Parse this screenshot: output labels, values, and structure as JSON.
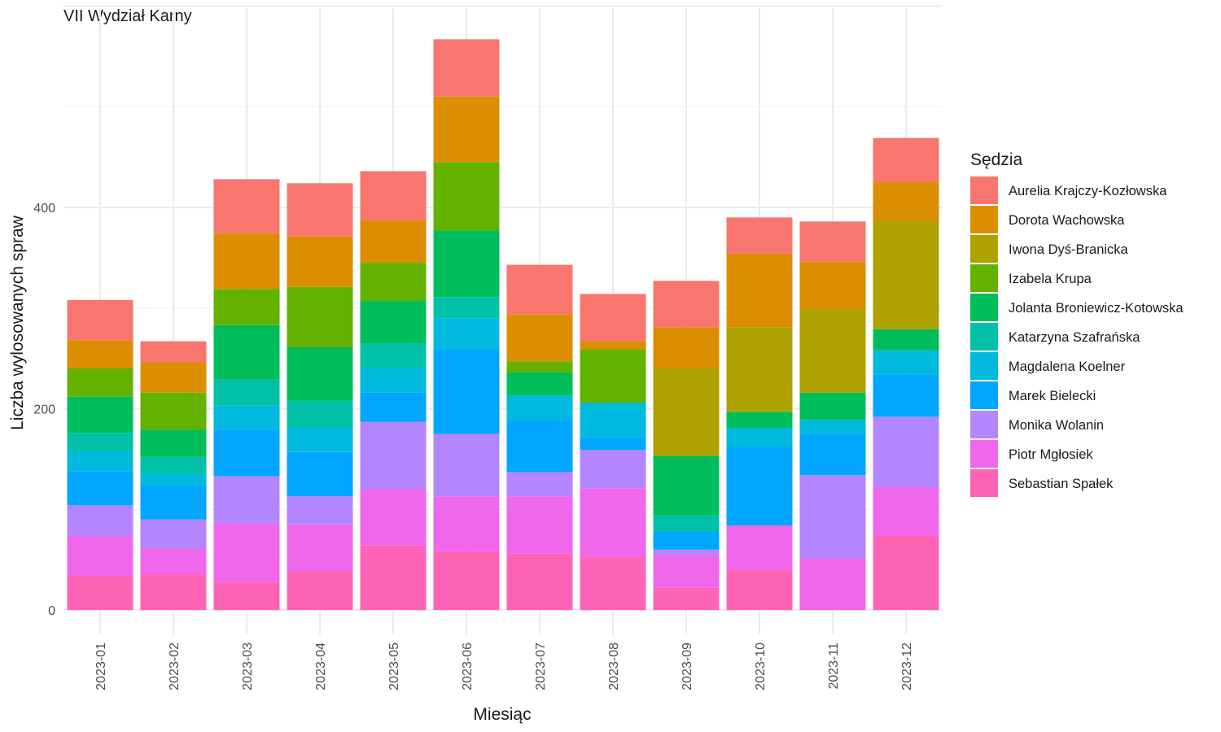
{
  "chart_data": {
    "type": "bar",
    "stacked": true,
    "title": "VII Wydział Karny",
    "xlabel": "Miesiąc",
    "ylabel": "Liczba wylosowanych spraw",
    "ylim": [
      0,
      600
    ],
    "yticks": [
      0,
      200,
      400
    ],
    "grid": true,
    "legend_title": "Sędzia",
    "legend_position": "right",
    "categories": [
      "2023-01",
      "2023-02",
      "2023-03",
      "2023-04",
      "2023-05",
      "2023-06",
      "2023-07",
      "2023-08",
      "2023-09",
      "2023-10",
      "2023-11",
      "2023-12"
    ],
    "series": [
      {
        "name": "Aurelia Krajczy-Kozłowska",
        "color": "#F8766D",
        "values": [
          40,
          21,
          54,
          53,
          49,
          57,
          49,
          47,
          46,
          36,
          40,
          44
        ]
      },
      {
        "name": "Dorota Wachowska",
        "color": "#DB8E00",
        "values": [
          28,
          30,
          55,
          50,
          42,
          65,
          47,
          8,
          41,
          73,
          47,
          38
        ]
      },
      {
        "name": "Iwona Dyś-Branicka",
        "color": "#AEA200",
        "values": [
          0,
          0,
          0,
          0,
          0,
          0,
          0,
          0,
          87,
          84,
          83,
          108
        ]
      },
      {
        "name": "Izabela Krupa",
        "color": "#64B200",
        "values": [
          28,
          37,
          36,
          60,
          38,
          68,
          11,
          53,
          0,
          0,
          0,
          0
        ]
      },
      {
        "name": "Jolanta Broniewicz-Kotowska",
        "color": "#00BD5C",
        "values": [
          36,
          27,
          54,
          53,
          42,
          66,
          23,
          0,
          59,
          16,
          27,
          21
        ]
      },
      {
        "name": "Katarzyna Szafrańska",
        "color": "#00C1A7",
        "values": [
          18,
          17,
          26,
          27,
          25,
          21,
          0,
          0,
          16,
          0,
          0,
          0
        ]
      },
      {
        "name": "Magdalena Koelner",
        "color": "#00BADE",
        "values": [
          20,
          11,
          23,
          24,
          24,
          31,
          24,
          34,
          0,
          19,
          14,
          24
        ]
      },
      {
        "name": "Marek Bielecki",
        "color": "#00A6FF",
        "values": [
          34,
          34,
          47,
          44,
          29,
          84,
          52,
          13,
          18,
          78,
          41,
          42
        ]
      },
      {
        "name": "Monika Wolanin",
        "color": "#B385FF",
        "values": [
          30,
          29,
          47,
          28,
          67,
          62,
          24,
          38,
          5,
          0,
          83,
          70
        ]
      },
      {
        "name": "Piotr Mgłosiek",
        "color": "#EF67EB",
        "values": [
          40,
          25,
          58,
          47,
          56,
          55,
          57,
          68,
          33,
          44,
          51,
          48
        ]
      },
      {
        "name": "Sebastian Spałek",
        "color": "#FF63B6",
        "values": [
          34,
          36,
          28,
          38,
          64,
          58,
          56,
          53,
          22,
          40,
          0,
          74
        ]
      }
    ]
  }
}
